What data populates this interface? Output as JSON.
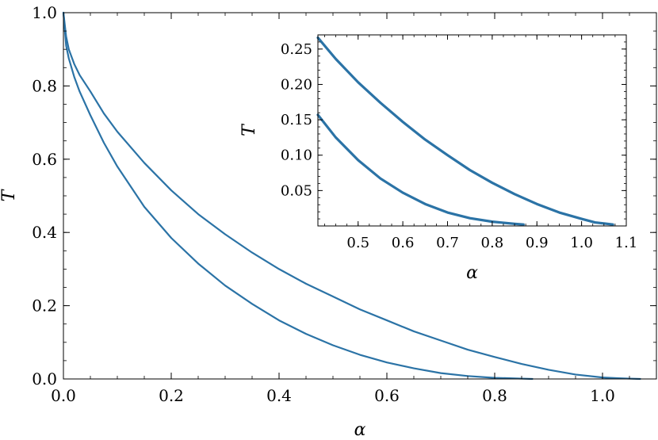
{
  "colors": {
    "series": "#2b73a6",
    "axes": "#000000",
    "background": "#ffffff"
  },
  "chart_data": [
    {
      "type": "line",
      "xlabel": "α",
      "ylabel": "T",
      "xlim": [
        0.0,
        1.1
      ],
      "ylim": [
        0.0,
        1.0
      ],
      "x_ticks": [
        0.0,
        0.2,
        0.4,
        0.6,
        0.8,
        1.0
      ],
      "x_tick_labels": [
        "0.0",
        "0.2",
        "0.4",
        "0.6",
        "0.8",
        "1.0"
      ],
      "y_ticks": [
        0.0,
        0.2,
        0.4,
        0.6,
        0.8,
        1.0
      ],
      "y_tick_labels": [
        "0.0",
        "0.2",
        "0.4",
        "0.6",
        "0.8",
        "1.0"
      ],
      "grid": false,
      "series": [
        {
          "x": [
            0.0,
            0.005,
            0.01,
            0.02,
            0.03,
            0.05,
            0.075,
            0.1,
            0.15,
            0.2,
            0.25,
            0.3,
            0.35,
            0.4,
            0.45,
            0.5,
            0.55,
            0.6,
            0.65,
            0.7,
            0.75,
            0.8,
            0.85,
            0.87
          ],
          "y": [
            1.0,
            0.91,
            0.875,
            0.825,
            0.785,
            0.72,
            0.645,
            0.58,
            0.47,
            0.385,
            0.315,
            0.255,
            0.205,
            0.16,
            0.123,
            0.092,
            0.066,
            0.045,
            0.029,
            0.016,
            0.008,
            0.003,
            0.001,
            0.0
          ]
        },
        {
          "x": [
            0.0,
            0.005,
            0.01,
            0.02,
            0.03,
            0.05,
            0.075,
            0.1,
            0.15,
            0.2,
            0.25,
            0.3,
            0.35,
            0.4,
            0.45,
            0.5,
            0.55,
            0.6,
            0.65,
            0.7,
            0.75,
            0.8,
            0.85,
            0.9,
            0.95,
            1.0,
            1.03,
            1.05,
            1.07
          ],
          "y": [
            1.0,
            0.935,
            0.9,
            0.86,
            0.83,
            0.785,
            0.725,
            0.675,
            0.59,
            0.515,
            0.45,
            0.395,
            0.345,
            0.3,
            0.26,
            0.225,
            0.19,
            0.16,
            0.13,
            0.105,
            0.08,
            0.06,
            0.041,
            0.025,
            0.012,
            0.004,
            0.002,
            0.001,
            0.0
          ]
        }
      ]
    },
    {
      "type": "line",
      "xlabel": "α",
      "ylabel": "T",
      "xlim": [
        0.41,
        1.1
      ],
      "ylim": [
        0.0,
        0.27
      ],
      "x_ticks": [
        0.5,
        0.6,
        0.7,
        0.8,
        0.9,
        1.0,
        1.1
      ],
      "x_tick_labels": [
        "0.5",
        "0.6",
        "0.7",
        "0.8",
        "0.9",
        "1.0",
        "1.1"
      ],
      "y_ticks": [
        0.05,
        0.1,
        0.15,
        0.2,
        0.25
      ],
      "y_tick_labels": [
        "0.05",
        "0.10",
        "0.15",
        "0.20",
        "0.25"
      ],
      "grid": false,
      "series": [
        {
          "x": [
            0.41,
            0.45,
            0.5,
            0.55,
            0.6,
            0.65,
            0.7,
            0.75,
            0.8,
            0.85,
            0.87
          ],
          "y": [
            0.157,
            0.125,
            0.093,
            0.067,
            0.047,
            0.031,
            0.019,
            0.011,
            0.006,
            0.003,
            0.002
          ]
        },
        {
          "x": [
            0.41,
            0.45,
            0.5,
            0.55,
            0.6,
            0.65,
            0.7,
            0.75,
            0.8,
            0.85,
            0.9,
            0.95,
            1.0,
            1.03,
            1.07
          ],
          "y": [
            0.266,
            0.236,
            0.203,
            0.174,
            0.147,
            0.122,
            0.1,
            0.079,
            0.061,
            0.045,
            0.031,
            0.019,
            0.01,
            0.005,
            0.002
          ]
        }
      ]
    }
  ]
}
